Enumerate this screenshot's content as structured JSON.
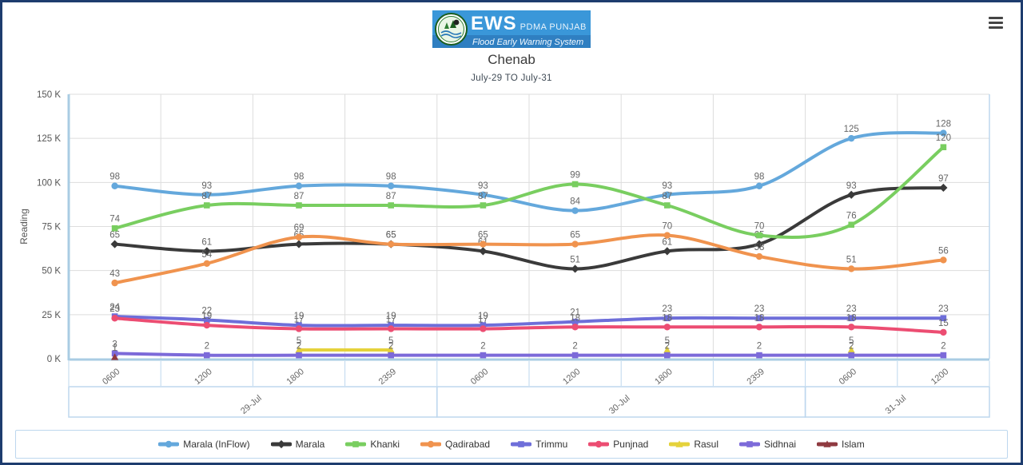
{
  "header": {
    "menu_icon": "hamburger-icon",
    "logo": {
      "ews": "EWS",
      "org": "PDMA PUNJAB",
      "tagline": "Flood Early Warning System",
      "bg_color": "#3a97d9",
      "strip_color": "#2f7fc1",
      "emblem": "pdma-green-emblem"
    },
    "title": "Chenab",
    "subtitle": "July-29 TO July-31"
  },
  "chart_data": {
    "type": "line",
    "title": "Chenab",
    "subtitle": "July-29 TO July-31",
    "ylabel": "Reading",
    "xlabel": "",
    "ylim": [
      0,
      150
    ],
    "y_unit": "K",
    "y_ticks": [
      "150 K",
      "125 K",
      "100 K",
      "75 K",
      "50 K",
      "25 K",
      "0 K"
    ],
    "grid": true,
    "legend_position": "bottom",
    "categories": [
      "0600",
      "1200",
      "1800",
      "2359",
      "0600",
      "1200",
      "1800",
      "2359",
      "0600",
      "1200"
    ],
    "date_groups": [
      {
        "label": "29-Jul",
        "span": 4
      },
      {
        "label": "30-Jul",
        "span": 4
      },
      {
        "label": "31-Jul",
        "span": 2
      }
    ],
    "series": [
      {
        "name": "Marala (InFlow)",
        "color": "#64a8dc",
        "marker": "circle",
        "values": [
          98,
          93,
          98,
          98,
          93,
          84,
          93,
          98,
          125,
          128
        ]
      },
      {
        "name": "Marala",
        "color": "#3a3a3a",
        "marker": "diamond",
        "values": [
          65,
          61,
          65,
          65,
          61,
          51,
          61,
          65,
          93,
          97
        ]
      },
      {
        "name": "Khanki",
        "color": "#79ce60",
        "marker": "square",
        "values": [
          74,
          87,
          87,
          87,
          87,
          99,
          87,
          70,
          76,
          120
        ]
      },
      {
        "name": "Qadirabad",
        "color": "#f0934e",
        "marker": "circle",
        "values": [
          43,
          54,
          69,
          65,
          65,
          65,
          70,
          58,
          51,
          56
        ]
      },
      {
        "name": "Trimmu",
        "color": "#6e6ed9",
        "marker": "square",
        "values": [
          24,
          22,
          19,
          19,
          19,
          21,
          23,
          23,
          23,
          23
        ]
      },
      {
        "name": "Punjnad",
        "color": "#ec4d72",
        "marker": "circle",
        "values": [
          23,
          19,
          17,
          17,
          17,
          18,
          18,
          18,
          18,
          15
        ]
      },
      {
        "name": "Rasul",
        "color": "#e5d23b",
        "marker": "triangle",
        "values": [
          null,
          null,
          5,
          5,
          null,
          null,
          5,
          null,
          5,
          null
        ]
      },
      {
        "name": "Sidhnai",
        "color": "#7c6ad9",
        "marker": "square",
        "values": [
          3,
          2,
          2,
          2,
          2,
          2,
          2,
          2,
          2,
          2
        ]
      },
      {
        "name": "Islam",
        "color": "#8f3a40",
        "marker": "triangle",
        "values": [
          1,
          null,
          null,
          null,
          null,
          null,
          null,
          null,
          null,
          null
        ]
      }
    ],
    "label_color": "#666666",
    "axis_line_color": "#a9cce3",
    "grid_color": "#dddddd",
    "band_border_color": "#bdd7ee"
  }
}
